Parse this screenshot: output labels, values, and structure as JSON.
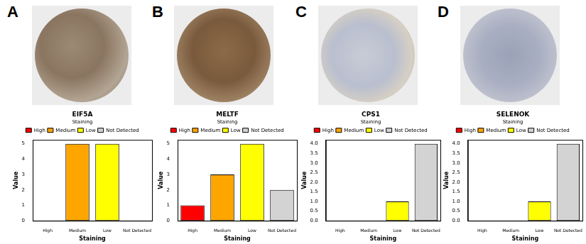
{
  "chart_data": [
    {
      "type": "bar",
      "panel": "A",
      "title": "EIF5A",
      "x_label": "Staining",
      "y_label": "Value",
      "categories": [
        "High",
        "Medium",
        "Low",
        "Not Detected"
      ],
      "values": [
        0,
        5,
        5,
        0
      ],
      "colors": [
        "#ff0000",
        "#ffa500",
        "#ffff00",
        "#d3d3d3"
      ],
      "ylim": [
        0,
        5.25
      ],
      "yticks": [
        0,
        1,
        2,
        3,
        4,
        5
      ],
      "grid": false,
      "legend": "top",
      "legend_title": "Staining"
    },
    {
      "type": "bar",
      "panel": "B",
      "title": "MELTF",
      "x_label": "Staining",
      "y_label": "Value",
      "categories": [
        "High",
        "Medium",
        "Low",
        "Not Detected"
      ],
      "values": [
        1,
        3,
        5,
        2
      ],
      "colors": [
        "#ff0000",
        "#ffa500",
        "#ffff00",
        "#d3d3d3"
      ],
      "ylim": [
        0,
        5.25
      ],
      "yticks": [
        0,
        1,
        2,
        3,
        4,
        5
      ],
      "grid": false,
      "legend": "top",
      "legend_title": "Staining"
    },
    {
      "type": "bar",
      "panel": "C",
      "title": "CPS1",
      "x_label": "Staining",
      "y_label": "Value",
      "categories": [
        "High",
        "Medium",
        "Low",
        "Not Detected"
      ],
      "values": [
        0,
        0,
        1,
        4
      ],
      "colors": [
        "#ff0000",
        "#ffa500",
        "#ffff00",
        "#d3d3d3"
      ],
      "ylim": [
        0,
        4.2
      ],
      "yticks": [
        {
          "value": 0,
          "label": "0.0"
        },
        {
          "value": 0.5,
          "label": "0.5"
        },
        {
          "value": 1,
          "label": "1.0"
        },
        {
          "value": 1.5,
          "label": "1.5"
        },
        {
          "value": 2,
          "label": "2.0"
        },
        {
          "value": 2.5,
          "label": "2.5"
        },
        {
          "value": 3,
          "label": "3.0"
        },
        {
          "value": 3.5,
          "label": "3.5"
        },
        {
          "value": 4,
          "label": "4.0"
        }
      ],
      "grid": false,
      "legend": "top",
      "legend_title": "Staining"
    },
    {
      "type": "bar",
      "panel": "D",
      "title": "SELENOK",
      "x_label": "Staining",
      "y_label": "Value",
      "categories": [
        "High",
        "Medium",
        "Low",
        "Not Detected"
      ],
      "values": [
        0,
        0,
        1,
        4
      ],
      "colors": [
        "#ff0000",
        "#ffa500",
        "#ffff00",
        "#d3d3d3"
      ],
      "ylim": [
        0,
        4.2
      ],
      "yticks": [
        {
          "value": 0,
          "label": "0.0"
        },
        {
          "value": 0.5,
          "label": "0.5"
        },
        {
          "value": 1,
          "label": "1.0"
        },
        {
          "value": 1.5,
          "label": "1.5"
        },
        {
          "value": 2,
          "label": "2.0"
        },
        {
          "value": 2.5,
          "label": "2.5"
        },
        {
          "value": 3,
          "label": "3.0"
        },
        {
          "value": 3.5,
          "label": "3.5"
        },
        {
          "value": 4,
          "label": "4.0"
        }
      ],
      "grid": false,
      "legend": "top",
      "legend_title": "Staining"
    }
  ]
}
